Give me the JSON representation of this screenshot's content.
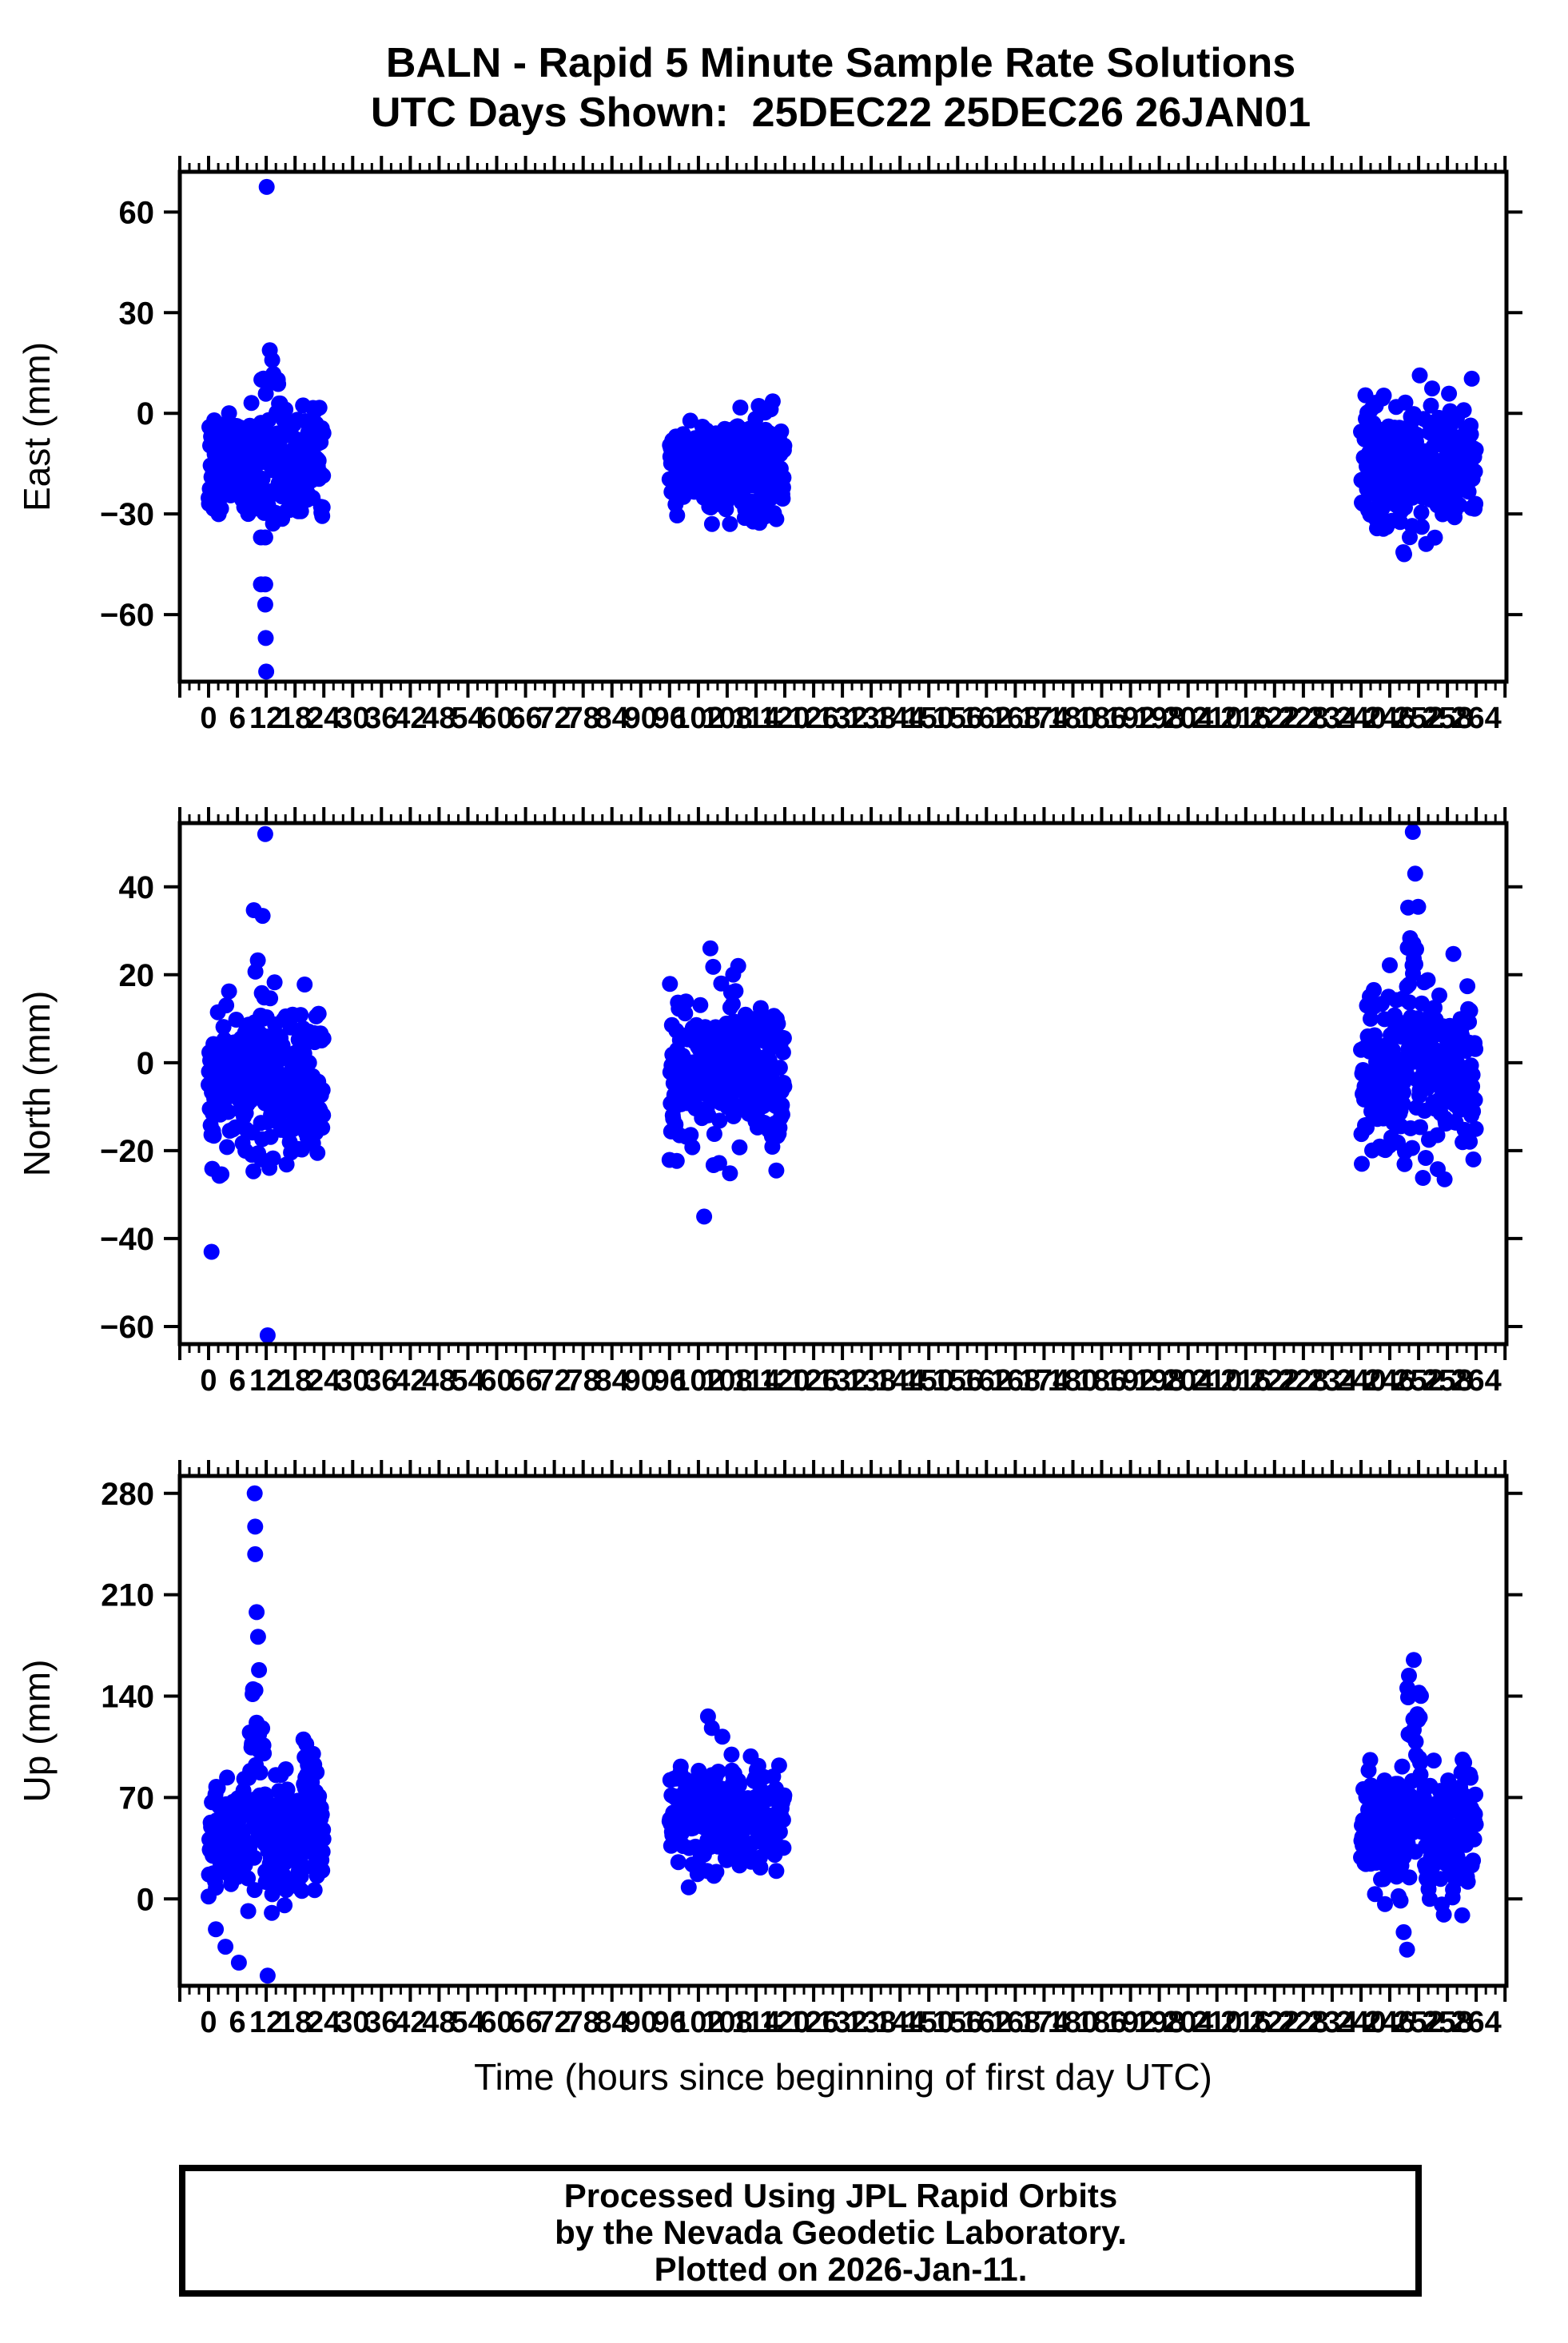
{
  "title": {
    "line1": "BALN - Rapid 5 Minute Sample Rate Solutions",
    "line2": "UTC Days Shown:  25DEC22 25DEC26 26JAN01"
  },
  "footer": {
    "line1": "Processed Using JPL Rapid Orbits",
    "line2": "by the Nevada Geodetic Laboratory.",
    "line3": "Plotted on 2026-Jan-11."
  },
  "chart_data": {
    "type": "scatter",
    "title": "BALN - Rapid 5 Minute Sample Rate Solutions",
    "subtitle": "UTC Days Shown:  25DEC22 25DEC26 26JAN01",
    "station": "BALN",
    "utc_days_shown": [
      "25DEC22",
      "25DEC26",
      "26JAN01"
    ],
    "xlabel": "Time (hours since beginning of first day UTC)",
    "marker_color": "#0000ff",
    "sample_interval_hours": 0.0833,
    "x_domain": [
      -6,
      270.3
    ],
    "x_tick_min": 0,
    "x_tick_max": 264,
    "x_tick_step": 6,
    "x_minor_step": 2,
    "grid": false,
    "legend": false,
    "seed": 20260111,
    "day_windows_hours": [
      [
        0,
        24
      ],
      [
        96,
        120
      ],
      [
        240,
        264
      ]
    ],
    "panels": [
      {
        "id": "east",
        "ylabel": "East (mm)",
        "y_domain": [
          -80,
          72
        ],
        "y_tick_values": [
          -60,
          -30,
          0,
          30,
          60
        ],
        "y_tick_labels": [
          "−60",
          "−30",
          "0",
          "30",
          "60"
        ],
        "clusters": [
          {
            "hours": [
              0,
              24
            ],
            "mean": -15,
            "std": 8.5,
            "clamp": [
              -34,
              5
            ],
            "flares": [
              {
                "hours": [
                  10,
                  14.5
                ],
                "mean": -5,
                "std": 16,
                "clamp": [
                  -30,
                  31
                ]
              }
            ],
            "outliers": [
              [
                12.1,
                67.5
              ],
              [
                10.9,
                -37
              ],
              [
                11.8,
                -37
              ],
              [
                10.9,
                -51
              ],
              [
                11.8,
                -51
              ],
              [
                11.8,
                -57
              ],
              [
                11.9,
                -67
              ],
              [
                12.0,
                -77
              ]
            ]
          },
          {
            "hours": [
              96,
              120
            ],
            "mean": -16,
            "std": 7.5,
            "clamp": [
              -33,
              8
            ],
            "flares": [],
            "outliers": []
          },
          {
            "hours": [
              240,
              264
            ],
            "mean": -15,
            "std": 9.5,
            "clamp": [
              -43,
              14
            ],
            "flares": [],
            "outliers": [
              [
                249,
                -42
              ]
            ]
          }
        ]
      },
      {
        "id": "north",
        "ylabel": "North (mm)",
        "y_domain": [
          -64,
          54.5
        ],
        "y_tick_values": [
          -60,
          -40,
          -20,
          0,
          20,
          40
        ],
        "y_tick_labels": [
          "−60",
          "−40",
          "−20",
          "0",
          "20",
          "40"
        ],
        "clusters": [
          {
            "hours": [
              0,
              24
            ],
            "mean": -4,
            "std": 9,
            "clamp": [
              -26,
              18
            ],
            "flares": [
              {
                "hours": [
                  9,
                  14
                ],
                "mean": 4,
                "std": 16,
                "clamp": [
                  -34,
                  39
                ]
              }
            ],
            "outliers": [
              [
                11.8,
                52
              ],
              [
                0.6,
                -43
              ],
              [
                12.3,
                -62
              ]
            ]
          },
          {
            "hours": [
              96,
              120
            ],
            "mean": -3,
            "std": 8.5,
            "clamp": [
              -26,
              22
            ],
            "flares": [],
            "outliers": [
              [
                104.5,
                26
              ],
              [
                110.3,
                22
              ],
              [
                103.2,
                -35
              ]
            ]
          },
          {
            "hours": [
              240,
              264
            ],
            "mean": -3,
            "std": 10,
            "clamp": [
              -28,
              26
            ],
            "flares": [
              {
                "hours": [
                  249.5,
                  252
                ],
                "mean": 15,
                "std": 15,
                "clamp": [
                  -10,
                  46
                ]
              }
            ],
            "outliers": [
              [
                250.8,
                52.5
              ],
              [
                251.3,
                43
              ]
            ]
          }
        ]
      },
      {
        "id": "up",
        "ylabel": "Up (mm)",
        "y_domain": [
          -60,
          292
        ],
        "y_tick_values": [
          0,
          70,
          140,
          210,
          280
        ],
        "y_tick_labels": [
          "0",
          "70",
          "140",
          "210",
          "280"
        ],
        "clusters": [
          {
            "hours": [
              0,
              24
            ],
            "mean": 42,
            "std": 20,
            "clamp": [
              -12,
              92
            ],
            "flares": [
              {
                "hours": [
                  8.3,
                  11.5
                ],
                "mean": 100,
                "std": 30,
                "clamp": [
                  55,
                  150
                ]
              },
              {
                "hours": [
                  19.5,
                  22.5
                ],
                "mean": 75,
                "std": 28,
                "clamp": [
                  30,
                  138
                ]
              }
            ],
            "outliers": [
              [
                9.6,
                280
              ],
              [
                9.7,
                257
              ],
              [
                9.7,
                238
              ],
              [
                10.0,
                198
              ],
              [
                10.3,
                181
              ],
              [
                10.5,
                158
              ],
              [
                1.5,
                -21
              ],
              [
                3.5,
                -33
              ],
              [
                6.3,
                -44
              ],
              [
                12.3,
                -53
              ]
            ]
          },
          {
            "hours": [
              96,
              120
            ],
            "mean": 57,
            "std": 18,
            "clamp": [
              8,
              112
            ],
            "flares": [],
            "outliers": [
              [
                104,
                126
              ],
              [
                104.8,
                118
              ],
              [
                107,
                112
              ],
              [
                100,
                8
              ]
            ]
          },
          {
            "hours": [
              240,
              264
            ],
            "mean": 48,
            "std": 22,
            "clamp": [
              -14,
              108
            ],
            "flares": [
              {
                "hours": [
                  249.5,
                  252.5
                ],
                "mean": 110,
                "std": 30,
                "clamp": [
                  60,
                  166
                ]
              }
            ],
            "outliers": [
              [
                251,
                165
              ],
              [
                248.9,
                -23
              ],
              [
                249.6,
                -35
              ]
            ]
          }
        ]
      }
    ]
  }
}
